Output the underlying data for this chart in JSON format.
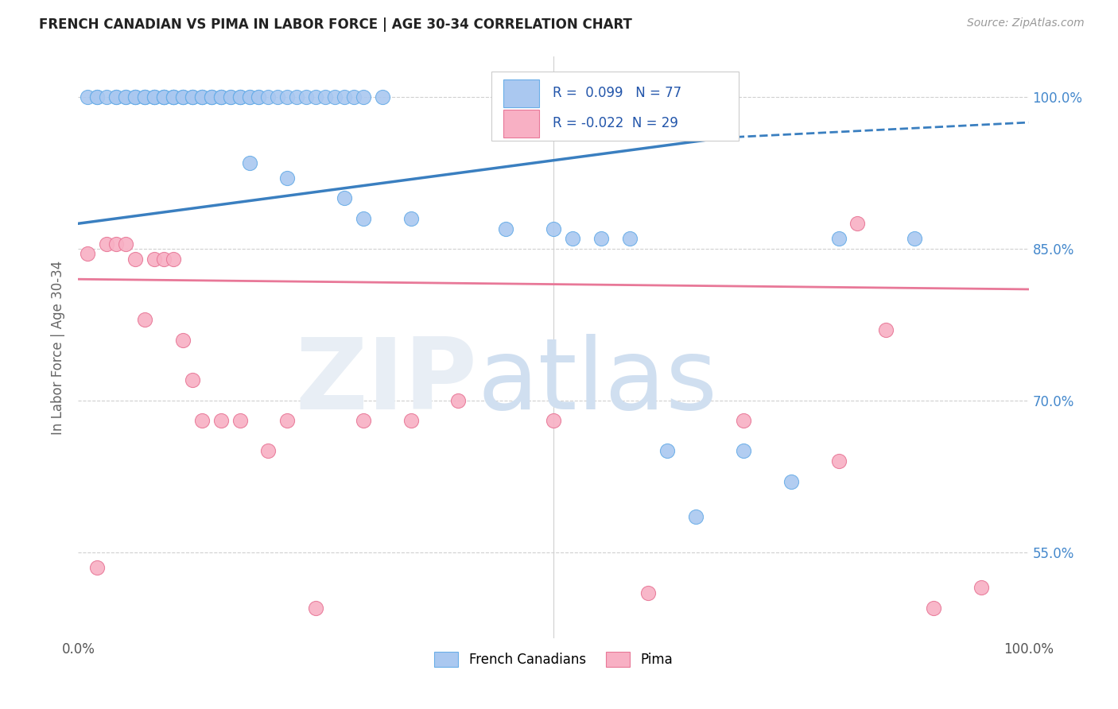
{
  "title": "FRENCH CANADIAN VS PIMA IN LABOR FORCE | AGE 30-34 CORRELATION CHART",
  "source_text": "Source: ZipAtlas.com",
  "ylabel": "In Labor Force | Age 30-34",
  "xlim": [
    0.0,
    1.0
  ],
  "ylim": [
    0.465,
    1.04
  ],
  "x_tick_labels": [
    "0.0%",
    "100.0%"
  ],
  "y_tick_labels": [
    "55.0%",
    "70.0%",
    "85.0%",
    "100.0%"
  ],
  "y_tick_vals": [
    0.55,
    0.7,
    0.85,
    1.0
  ],
  "legend_labels": [
    "French Canadians",
    "Pima"
  ],
  "R_blue": 0.099,
  "N_blue": 77,
  "R_pink": -0.022,
  "N_pink": 29,
  "blue_color": "#aac8f0",
  "blue_edge": "#6aaee8",
  "pink_color": "#f8b0c4",
  "pink_edge": "#e87898",
  "trendline_blue": "#3a7fc0",
  "trendline_pink": "#e87898",
  "blue_trend_start_y": 0.875,
  "blue_trend_end_y": 0.96,
  "blue_trend_dash_end_y": 0.975,
  "pink_trend_start_y": 0.82,
  "pink_trend_end_y": 0.81,
  "trend_solid_end_x": 0.68,
  "blue_scatter_x": [
    0.01,
    0.02,
    0.02,
    0.03,
    0.04,
    0.04,
    0.05,
    0.05,
    0.06,
    0.06,
    0.06,
    0.07,
    0.07,
    0.07,
    0.08,
    0.08,
    0.08,
    0.09,
    0.09,
    0.09,
    0.09,
    0.1,
    0.1,
    0.1,
    0.1,
    0.11,
    0.11,
    0.11,
    0.12,
    0.12,
    0.12,
    0.13,
    0.13,
    0.13,
    0.14,
    0.14,
    0.14,
    0.15,
    0.15,
    0.15,
    0.16,
    0.16,
    0.17,
    0.17,
    0.17,
    0.18,
    0.18,
    0.19,
    0.19,
    0.2,
    0.21,
    0.22,
    0.23,
    0.24,
    0.25,
    0.26,
    0.27,
    0.28,
    0.29,
    0.3,
    0.32,
    0.18,
    0.22,
    0.28,
    0.3,
    0.35,
    0.45,
    0.5,
    0.52,
    0.55,
    0.58,
    0.62,
    0.65,
    0.7,
    0.75,
    0.8,
    0.88
  ],
  "blue_scatter_y": [
    1.0,
    1.0,
    1.0,
    1.0,
    1.0,
    1.0,
    1.0,
    1.0,
    1.0,
    1.0,
    1.0,
    1.0,
    1.0,
    1.0,
    1.0,
    1.0,
    1.0,
    1.0,
    1.0,
    1.0,
    1.0,
    1.0,
    1.0,
    1.0,
    1.0,
    1.0,
    1.0,
    1.0,
    1.0,
    1.0,
    1.0,
    1.0,
    1.0,
    1.0,
    1.0,
    1.0,
    1.0,
    1.0,
    1.0,
    1.0,
    1.0,
    1.0,
    1.0,
    1.0,
    1.0,
    1.0,
    1.0,
    1.0,
    1.0,
    1.0,
    1.0,
    1.0,
    1.0,
    1.0,
    1.0,
    1.0,
    1.0,
    1.0,
    1.0,
    1.0,
    1.0,
    0.935,
    0.92,
    0.9,
    0.88,
    0.88,
    0.87,
    0.87,
    0.86,
    0.86,
    0.86,
    0.65,
    0.585,
    0.65,
    0.62,
    0.86,
    0.86
  ],
  "pink_scatter_x": [
    0.01,
    0.02,
    0.03,
    0.04,
    0.05,
    0.06,
    0.07,
    0.08,
    0.09,
    0.1,
    0.11,
    0.12,
    0.13,
    0.15,
    0.17,
    0.2,
    0.22,
    0.25,
    0.3,
    0.35,
    0.4,
    0.5,
    0.6,
    0.7,
    0.8,
    0.82,
    0.85,
    0.9,
    0.95
  ],
  "pink_scatter_y": [
    0.845,
    0.535,
    0.855,
    0.855,
    0.855,
    0.84,
    0.78,
    0.84,
    0.84,
    0.84,
    0.76,
    0.72,
    0.68,
    0.68,
    0.68,
    0.65,
    0.68,
    0.495,
    0.68,
    0.68,
    0.7,
    0.68,
    0.51,
    0.68,
    0.64,
    0.875,
    0.77,
    0.495,
    0.515
  ]
}
